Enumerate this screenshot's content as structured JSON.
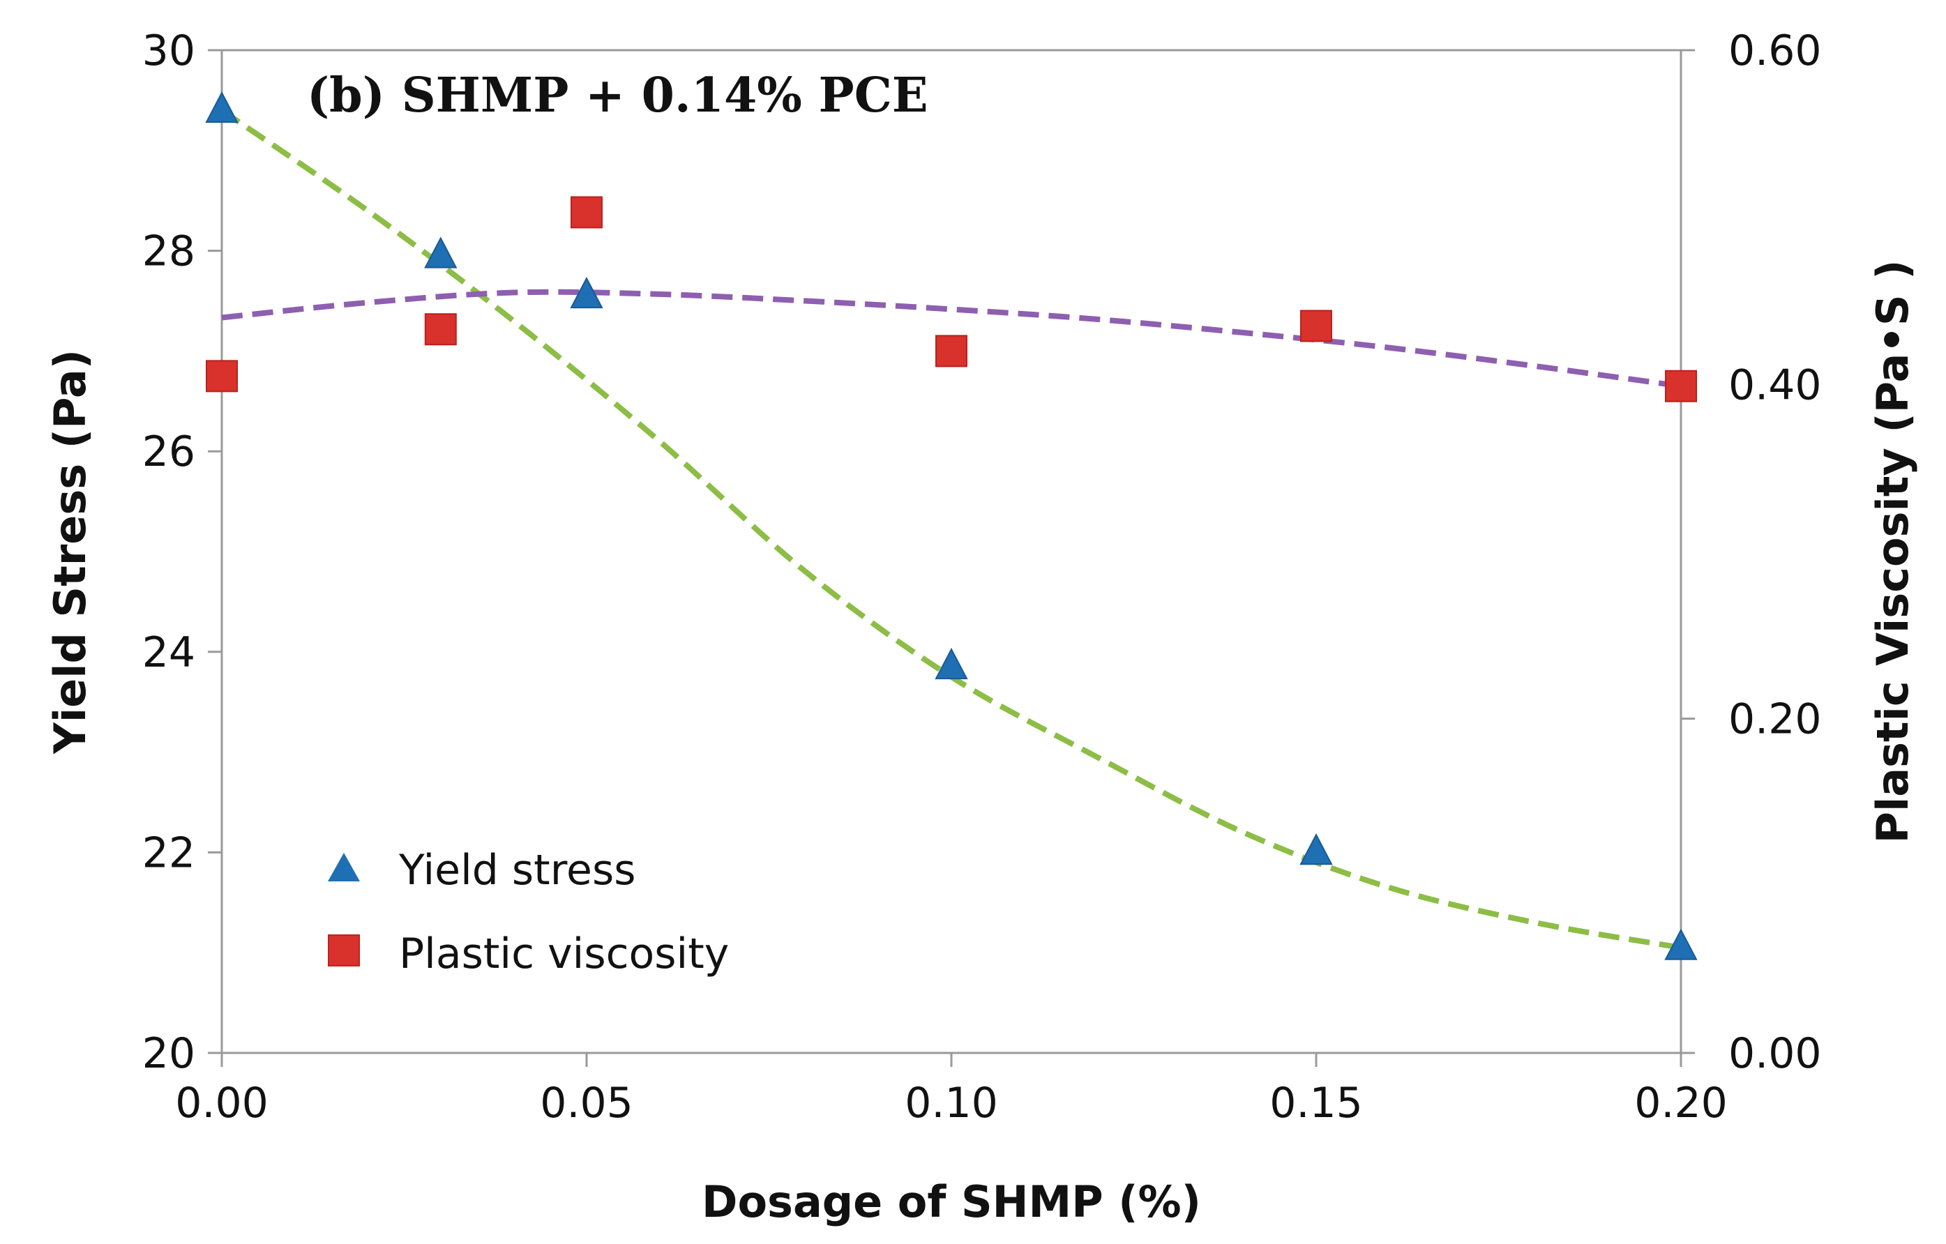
{
  "chart_data": {
    "type": "scatter",
    "title": "(b) SHMP + 0.14% PCE",
    "xlabel": "Dosage of SHMP (%)",
    "ylabel": "Yield Stress (Pa)",
    "y2label": "Plastic Viscosity (Pa•S )",
    "xlim": [
      0,
      0.2
    ],
    "ylim": [
      20,
      30
    ],
    "y2lim": [
      0,
      0.6
    ],
    "xticks": [
      "0.00",
      "0.05",
      "0.10",
      "0.15",
      "0.20"
    ],
    "yticks": [
      "20",
      "22",
      "24",
      "26",
      "28",
      "30"
    ],
    "y2ticks": [
      "0.00",
      "0.20",
      "0.40",
      "0.60"
    ],
    "grid": false,
    "legend_position": "bottom-left",
    "series": [
      {
        "name": "Yield stress",
        "axis": "left",
        "marker": "triangle",
        "color": "#1f6fb5",
        "x": [
          0,
          0.03,
          0.05,
          0.1,
          0.15,
          0.2
        ],
        "values": [
          29.4,
          27.95,
          27.55,
          23.85,
          22.0,
          21.05
        ],
        "trendline": {
          "color": "#8cbd45",
          "x": [
            0,
            0.02,
            0.04,
            0.06,
            0.08,
            0.1,
            0.12,
            0.14,
            0.16,
            0.18,
            0.2
          ],
          "values": [
            29.4,
            28.4,
            27.3,
            26.1,
            24.8,
            23.75,
            22.95,
            22.2,
            21.65,
            21.3,
            21.05
          ]
        }
      },
      {
        "name": "Plastic viscosity",
        "axis": "right",
        "marker": "square",
        "color": "#d9312b",
        "x": [
          0,
          0.03,
          0.05,
          0.1,
          0.15,
          0.2
        ],
        "values": [
          0.405,
          0.433,
          0.503,
          0.42,
          0.435,
          0.399
        ],
        "trendline": {
          "color": "#8e5fb0",
          "x": [
            0,
            0.02,
            0.04,
            0.06,
            0.08,
            0.1,
            0.12,
            0.14,
            0.16,
            0.18,
            0.2
          ],
          "values": [
            0.44,
            0.449,
            0.455,
            0.454,
            0.45,
            0.445,
            0.439,
            0.431,
            0.422,
            0.411,
            0.399
          ]
        }
      }
    ]
  }
}
